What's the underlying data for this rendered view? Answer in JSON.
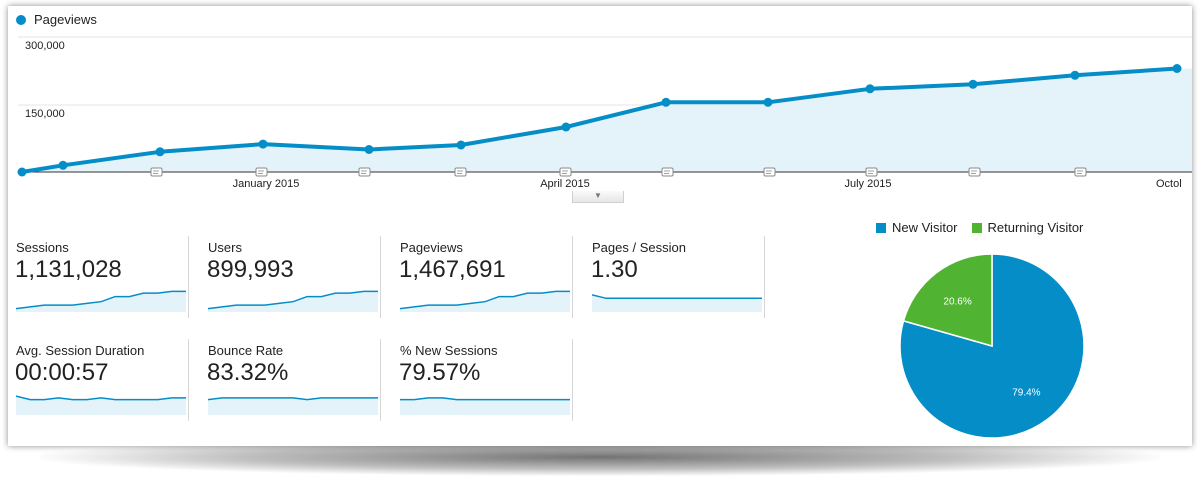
{
  "colors": {
    "accent": "#058dc7",
    "fill": "#e4f2fa",
    "returning": "#50b432"
  },
  "chart_data": [
    {
      "type": "line",
      "series": [
        {
          "name": "Pageviews",
          "values": [
            0,
            15000,
            45000,
            62000,
            50000,
            60000,
            100000,
            155000,
            155000,
            185000,
            195000,
            215000,
            230000
          ]
        }
      ],
      "x": [
        "2014-10-01",
        "2014-11-01",
        "2014-12-01",
        "2015-01-01",
        "2015-02-01",
        "2015-03-01",
        "2015-04-01",
        "2015-05-01",
        "2015-06-01",
        "2015-07-01",
        "2015-08-01",
        "2015-09-01",
        "2015-10-01"
      ],
      "ylim": [
        0,
        300000
      ],
      "yticks": [
        "300,000",
        "150,000"
      ],
      "xticks": [
        "January 2015",
        "April 2015",
        "July 2015",
        "Octol"
      ],
      "legend": "top-left",
      "grid": true
    },
    {
      "type": "pie",
      "series": [
        {
          "name": "New Visitor",
          "value": 79.4,
          "label": "79.4%"
        },
        {
          "name": "Returning Visitor",
          "value": 20.6,
          "label": "20.6%"
        }
      ],
      "legend": "top"
    }
  ],
  "scorecards": [
    {
      "label": "Sessions",
      "value": "1,131,028",
      "spark": [
        2,
        3,
        4,
        4,
        4,
        5,
        6,
        9,
        9,
        11,
        11,
        12,
        12
      ]
    },
    {
      "label": "Users",
      "value": "899,993",
      "spark": [
        2,
        3,
        4,
        4,
        4,
        5,
        6,
        9,
        9,
        11,
        11,
        12,
        12
      ]
    },
    {
      "label": "Pageviews",
      "value": "1,467,691",
      "spark": [
        2,
        3,
        4,
        4,
        4,
        5,
        6,
        9,
        9,
        11,
        11,
        12,
        12
      ]
    },
    {
      "label": "Pages / Session",
      "value": "1.30",
      "spark": [
        10,
        8,
        8,
        8,
        8,
        8,
        8,
        8,
        8,
        8,
        8,
        8,
        8
      ]
    },
    {
      "label": "Avg. Session Duration",
      "value": "00:00:57",
      "spark": [
        11,
        9,
        9,
        10,
        9,
        9,
        10,
        9,
        9,
        9,
        9,
        10,
        10
      ]
    },
    {
      "label": "Bounce Rate",
      "value": "83.32%",
      "spark": [
        9,
        10,
        10,
        10,
        10,
        10,
        10,
        9,
        10,
        10,
        10,
        10,
        10
      ]
    },
    {
      "label": "% New Sessions",
      "value": "79.57%",
      "spark": [
        9,
        9,
        10,
        10,
        9,
        9,
        9,
        9,
        9,
        9,
        9,
        9,
        9
      ]
    }
  ]
}
